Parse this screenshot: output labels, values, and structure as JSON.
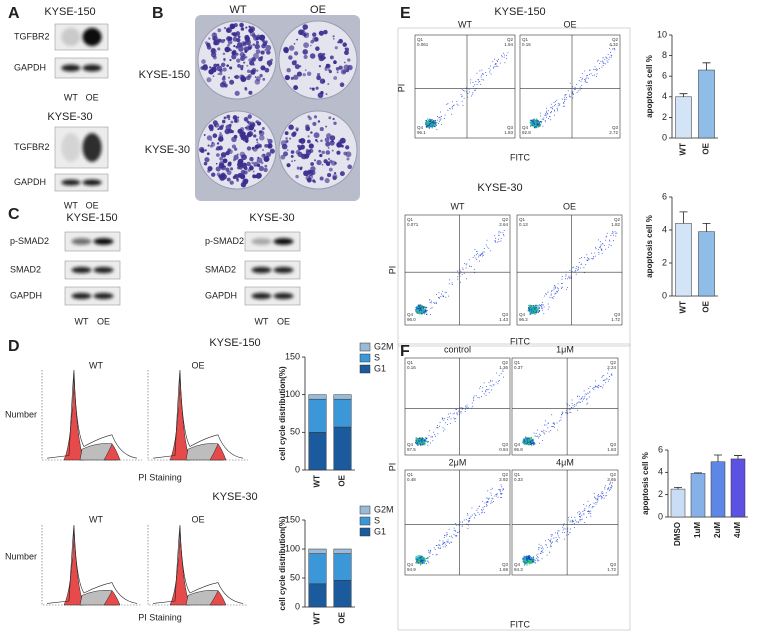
{
  "panels": {
    "A": {
      "label": "A",
      "groups": [
        {
          "title": "KYSE-150",
          "rows": [
            "TGFBR2",
            "GAPDH"
          ],
          "lanes": [
            "WT",
            "OE"
          ]
        },
        {
          "title": "KYSE-30",
          "rows": [
            "TGFBR2",
            "GAPDH"
          ],
          "lanes": [
            "WT",
            "OE"
          ]
        }
      ]
    },
    "B": {
      "label": "B",
      "columns": [
        "WT",
        "OE"
      ],
      "rows": [
        "KYSE-150",
        "KYSE-30"
      ]
    },
    "C": {
      "label": "C",
      "groups": [
        {
          "title": "KYSE-150",
          "rows": [
            "p-SMAD2",
            "SMAD2",
            "GAPDH"
          ],
          "lanes": [
            "WT",
            "OE"
          ]
        },
        {
          "title": "KYSE-30",
          "rows": [
            "p-SMAD2",
            "SMAD2",
            "GAPDH"
          ],
          "lanes": [
            "WT",
            "OE"
          ]
        }
      ]
    },
    "D": {
      "label": "D",
      "groups": [
        {
          "title": "KYSE-150",
          "samples": [
            "WT",
            "OE"
          ],
          "y_label": "Number",
          "x_label": "PI Staining"
        },
        {
          "title": "KYSE-30",
          "samples": [
            "WT",
            "OE"
          ],
          "y_label": "Number",
          "x_label": "PI Staining"
        }
      ]
    },
    "E": {
      "label": "E",
      "groups": [
        {
          "title": "KYSE-150",
          "y_label": "PI",
          "x_label": "FITC",
          "plots": [
            {
              "name": "WT",
              "quadrants": [
                {
                  "label": "Q1",
                  "value": "0.061"
                },
                {
                  "label": "Q2",
                  "value": "1.94"
                },
                {
                  "label": "Q3",
                  "value": "1.83"
                },
                {
                  "label": "Q4",
                  "value": "96.1"
                }
              ]
            },
            {
              "name": "OE",
              "quadrants": [
                {
                  "label": "Q1",
                  "value": "0.16"
                },
                {
                  "label": "Q2",
                  "value": "4.32"
                },
                {
                  "label": "Q3",
                  "value": "2.72"
                },
                {
                  "label": "Q4",
                  "value": "92.8"
                }
              ]
            }
          ]
        },
        {
          "title": "KYSE-30",
          "y_label": "PI",
          "x_label": "FITC",
          "plots": [
            {
              "name": "WT",
              "quadrants": [
                {
                  "label": "Q1",
                  "value": "0.071"
                },
                {
                  "label": "Q2",
                  "value": "2.64"
                },
                {
                  "label": "Q3",
                  "value": "1.43"
                },
                {
                  "label": "Q4",
                  "value": "96.0"
                }
              ]
            },
            {
              "name": "OE",
              "quadrants": [
                {
                  "label": "Q1",
                  "value": "0.13"
                },
                {
                  "label": "Q2",
                  "value": "1.82"
                },
                {
                  "label": "Q3",
                  "value": "1.72"
                },
                {
                  "label": "Q4",
                  "value": "96.2"
                }
              ]
            }
          ]
        }
      ]
    },
    "F": {
      "label": "F",
      "y_label": "PI",
      "x_label": "FITC",
      "plots": [
        {
          "name": "control",
          "quadrants": [
            {
              "label": "Q1",
              "value": "0.16"
            },
            {
              "label": "Q2",
              "value": "1.36"
            },
            {
              "label": "Q3",
              "value": "0.94"
            },
            {
              "label": "Q4",
              "value": "97.5"
            }
          ]
        },
        {
          "name": "1μM",
          "quadrants": [
            {
              "label": "Q1",
              "value": "0.37"
            },
            {
              "label": "Q2",
              "value": "2.24"
            },
            {
              "label": "Q3",
              "value": "1.63"
            },
            {
              "label": "Q4",
              "value": "95.8"
            }
          ]
        },
        {
          "name": "2μM",
          "quadrants": [
            {
              "label": "Q1",
              "value": "0.48"
            },
            {
              "label": "Q2",
              "value": "2.92"
            },
            {
              "label": "Q3",
              "value": "1.69"
            },
            {
              "label": "Q4",
              "value": "94.9"
            }
          ]
        },
        {
          "name": "4μM",
          "quadrants": [
            {
              "label": "Q1",
              "value": "0.33"
            },
            {
              "label": "Q2",
              "value": "3.65"
            },
            {
              "label": "Q3",
              "value": "1.72"
            },
            {
              "label": "Q4",
              "value": "94.3"
            }
          ]
        }
      ]
    }
  },
  "chart_data": [
    {
      "type": "bar",
      "stacked": true,
      "y_label": "cell cycle distribution(%)",
      "categories": [
        "WT",
        "OE"
      ],
      "series": [
        {
          "name": "G1",
          "color": "#1b5a9c",
          "values": [
            50,
            57
          ]
        },
        {
          "name": "S",
          "color": "#3b97d8",
          "values": [
            44,
            37
          ]
        },
        {
          "name": "G2M",
          "color": "#9bbad8",
          "values": [
            6,
            6
          ]
        }
      ],
      "ylim": [
        0,
        150
      ],
      "yticks": [
        0,
        50,
        100,
        150
      ],
      "legend": "right"
    },
    {
      "type": "bar",
      "stacked": true,
      "y_label": "cell cycle distribution(%)",
      "categories": [
        "WT",
        "OE"
      ],
      "series": [
        {
          "name": "G1",
          "color": "#1b5a9c",
          "values": [
            40,
            46
          ]
        },
        {
          "name": "S",
          "color": "#3b97d8",
          "values": [
            52,
            46
          ]
        },
        {
          "name": "G2M",
          "color": "#9bbad8",
          "values": [
            8,
            8
          ]
        }
      ],
      "ylim": [
        0,
        150
      ],
      "yticks": [
        0,
        50,
        100,
        150
      ],
      "legend": "right"
    },
    {
      "type": "bar",
      "y_label": "apoptosis cell %",
      "categories": [
        "WT",
        "OE"
      ],
      "series": [
        {
          "values": [
            4.0,
            6.6
          ],
          "errors": [
            0.3,
            0.7
          ],
          "colors": [
            "#d2e4f6",
            "#8fbde8"
          ]
        }
      ],
      "ylim": [
        0,
        10
      ],
      "yticks": [
        0,
        2,
        4,
        6,
        8,
        10
      ]
    },
    {
      "type": "bar",
      "y_label": "apoptosis cell %",
      "categories": [
        "WT",
        "OE"
      ],
      "series": [
        {
          "values": [
            4.4,
            3.9
          ],
          "errors": [
            0.7,
            0.5
          ],
          "colors": [
            "#d2e4f6",
            "#8fbde8"
          ]
        }
      ],
      "ylim": [
        0,
        6
      ],
      "yticks": [
        0,
        2,
        4,
        6
      ]
    },
    {
      "type": "bar",
      "y_label": "apoptosis cell %",
      "categories": [
        "DMSO",
        "1uM",
        "2uM",
        "4uM"
      ],
      "series": [
        {
          "values": [
            2.5,
            3.9,
            4.95,
            5.2
          ],
          "errors": [
            0.15,
            0.05,
            0.6,
            0.3
          ],
          "colors": [
            "#c9ddf5",
            "#86b1e8",
            "#5d86e6",
            "#5b52e4"
          ]
        }
      ],
      "ylim": [
        0,
        6
      ],
      "yticks": [
        0,
        2,
        4,
        6
      ]
    }
  ]
}
